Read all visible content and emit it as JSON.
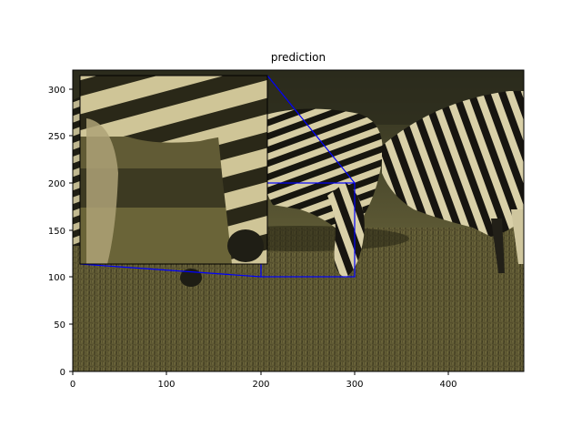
{
  "figure": {
    "title": "prediction",
    "x_ticks": [
      "0",
      "100",
      "200",
      "300",
      "400"
    ],
    "y_ticks": [
      "0",
      "50",
      "100",
      "150",
      "200",
      "250",
      "300"
    ],
    "image_subject": "two zebras grazing on a grassy savanna",
    "zoom_region": {
      "x_range": [
        200,
        300
      ],
      "y_range": [
        100,
        200
      ]
    },
    "colors": {
      "zoom_outline": "#0000ff",
      "grass_dark": "#3e3a22",
      "grass_light": "#6e6a3d",
      "zebra_light": "#d8cfa6",
      "zebra_dark": "#141410"
    }
  }
}
